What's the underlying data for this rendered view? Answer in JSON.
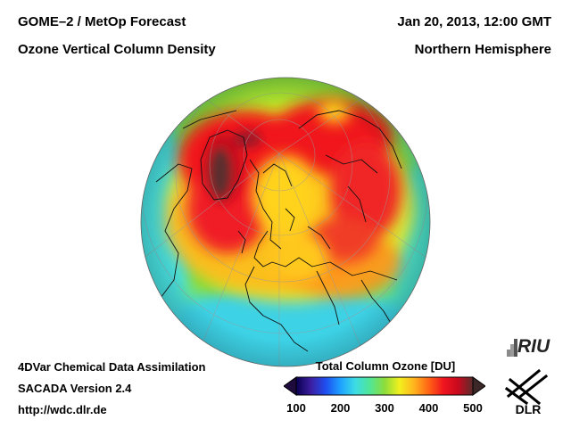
{
  "header": {
    "title": "GOME–2 / MetOp Forecast",
    "subtitle": "Ozone Vertical Column Density",
    "datetime": "Jan 20, 2013, 12:00 GMT",
    "region": "Northern Hemisphere"
  },
  "footer": {
    "method": "4DVar Chemical Data Assimilation",
    "version": "SACADA Version 2.4",
    "url": "http://wdc.dlr.de"
  },
  "colorbar": {
    "title": "Total Column Ozone [DU]",
    "ticks": [
      "100",
      "200",
      "300",
      "400",
      "500"
    ],
    "min": 100,
    "max": 500,
    "colors": [
      "#0a0050",
      "#3c1ea0",
      "#1e4ef0",
      "#1ea0ff",
      "#3cdce6",
      "#50e696",
      "#8cdc3c",
      "#f0f01e",
      "#ffb41e",
      "#ff6414",
      "#f0141e",
      "#c80a1e",
      "#5a2d2d"
    ]
  },
  "logos": {
    "riu": "RIU",
    "dlr": "DLR"
  }
}
